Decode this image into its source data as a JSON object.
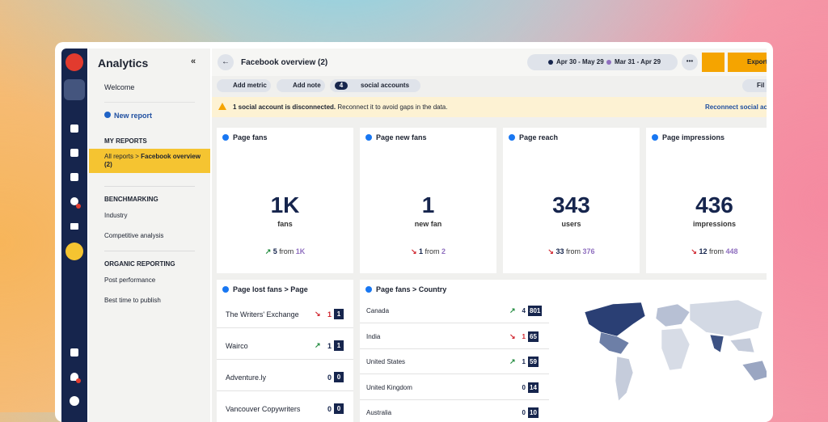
{
  "sidebar": {
    "title": "Analytics",
    "welcome": "Welcome",
    "new_report": "New report",
    "sections": [
      {
        "title": "MY REPORTS",
        "items": [
          {
            "prefix": "All reports >",
            "label": "Facebook overview (2)"
          }
        ]
      },
      {
        "title": "BENCHMARKING",
        "items": [
          "Industry",
          "Competitive analysis"
        ]
      },
      {
        "title": "ORGANIC REPORTING",
        "items": [
          "Post performance",
          "Best time to publish"
        ]
      }
    ]
  },
  "header": {
    "title": "Facebook overview (2)",
    "date_range": "Apr 30 - May 29",
    "compare_range": "Mar 31 - Apr 29",
    "export": "Export"
  },
  "toolbar": {
    "add_metric": "Add metric",
    "add_note": "Add note",
    "accounts_count": "4",
    "accounts": "social accounts",
    "filter": "Fil"
  },
  "alert": {
    "bold": "1 social account is disconnected.",
    "text": "Reconnect it to avoid gaps in the data.",
    "action": "Reconnect social acc"
  },
  "metrics": [
    {
      "title": "Page fans",
      "value": "1K",
      "unit": "fans",
      "direction": "up",
      "change": "5",
      "from": "from",
      "previous": "1K"
    },
    {
      "title": "Page new fans",
      "value": "1",
      "unit": "new fan",
      "direction": "down",
      "change": "1",
      "from": "from",
      "previous": "2"
    },
    {
      "title": "Page reach",
      "value": "343",
      "unit": "users",
      "direction": "down",
      "change": "33",
      "from": "from",
      "previous": "376"
    },
    {
      "title": "Page impressions",
      "value": "436",
      "unit": "impressions",
      "direction": "down",
      "change": "12",
      "from": "from",
      "previous": "448"
    }
  ],
  "lost_fans": {
    "title": "Page lost fans > Page",
    "rows": [
      {
        "name": "The Writers' Exchange",
        "direction": "down",
        "change": "1",
        "value": "1"
      },
      {
        "name": "Wairco",
        "direction": "up",
        "change": "1",
        "value": "1"
      },
      {
        "name": "Adventure.ly",
        "direction": "none",
        "change": "0",
        "value": "0"
      },
      {
        "name": "Vancouver Copywriters",
        "direction": "none",
        "change": "0",
        "value": "0"
      }
    ]
  },
  "fans_country": {
    "title": "Page fans > Country",
    "rows": [
      {
        "name": "Canada",
        "direction": "up",
        "change": "4",
        "value": "801"
      },
      {
        "name": "India",
        "direction": "down",
        "change": "1",
        "value": "65"
      },
      {
        "name": "United States",
        "direction": "up",
        "change": "1",
        "value": "59"
      },
      {
        "name": "United Kingdom",
        "direction": "none",
        "change": "0",
        "value": "14"
      },
      {
        "name": "Australia",
        "direction": "none",
        "change": "0",
        "value": "10"
      }
    ]
  }
}
